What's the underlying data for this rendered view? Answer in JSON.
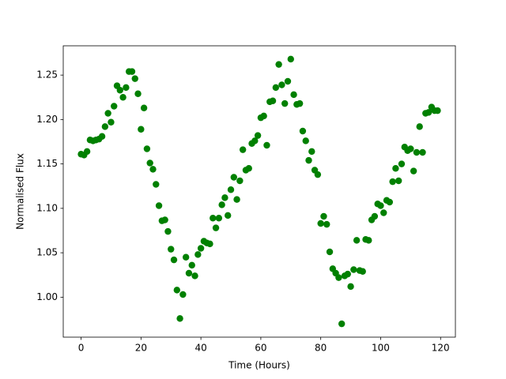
{
  "chart_data": {
    "type": "scatter",
    "xlabel": "Time (Hours)",
    "ylabel": "Normalised Flux",
    "color": "green",
    "grid": false,
    "x": [
      0,
      1,
      2,
      3,
      4,
      5,
      6,
      7,
      8,
      9,
      10,
      11,
      12,
      13,
      14,
      15,
      16,
      17,
      18,
      19,
      20,
      21,
      22,
      23,
      24,
      25,
      26,
      27,
      28,
      29,
      30,
      31,
      32,
      33,
      34,
      35,
      36,
      37,
      38,
      39,
      40,
      41,
      42,
      43,
      44,
      45,
      46,
      47,
      48,
      49,
      50,
      51,
      52,
      53,
      54,
      55,
      56,
      57,
      58,
      59,
      60,
      61,
      62,
      63,
      64,
      65,
      66,
      67,
      68,
      69,
      70,
      71,
      72,
      73,
      74,
      75,
      76,
      77,
      78,
      79,
      80,
      81,
      82,
      83,
      84,
      85,
      86,
      87,
      88,
      89,
      90,
      91,
      92,
      93,
      94,
      95,
      96,
      97,
      98,
      99,
      100,
      101,
      102,
      103,
      104,
      105,
      106,
      107,
      108,
      109,
      110,
      111,
      112,
      113,
      114,
      115,
      116,
      117,
      118,
      119
    ],
    "values": [
      1.161,
      1.16,
      1.164,
      1.177,
      1.176,
      1.177,
      1.178,
      1.181,
      1.192,
      1.207,
      1.197,
      1.215,
      1.238,
      1.233,
      1.225,
      1.236,
      1.254,
      1.254,
      1.246,
      1.229,
      1.189,
      1.213,
      1.167,
      1.151,
      1.144,
      1.127,
      1.103,
      1.086,
      1.087,
      1.074,
      1.054,
      1.042,
      1.008,
      0.976,
      1.003,
      1.045,
      1.027,
      1.036,
      1.024,
      1.048,
      1.055,
      1.063,
      1.061,
      1.06,
      1.089,
      1.078,
      1.089,
      1.104,
      1.112,
      1.092,
      1.121,
      1.135,
      1.11,
      1.131,
      1.166,
      1.143,
      1.145,
      1.173,
      1.176,
      1.182,
      1.202,
      1.204,
      1.171,
      1.22,
      1.221,
      1.236,
      1.262,
      1.239,
      1.218,
      1.243,
      1.268,
      1.228,
      1.217,
      1.218,
      1.187,
      1.176,
      1.154,
      1.164,
      1.143,
      1.138,
      1.083,
      1.091,
      1.082,
      1.051,
      1.032,
      1.027,
      1.022,
      0.97,
      1.024,
      1.026,
      1.012,
      1.031,
      1.064,
      1.03,
      1.029,
      1.065,
      1.064,
      1.087,
      1.091,
      1.105,
      1.103,
      1.095,
      1.109,
      1.107,
      1.13,
      1.145,
      1.131,
      1.15,
      1.169,
      1.165,
      1.167,
      1.142,
      1.163,
      1.192,
      1.163,
      1.207,
      1.208,
      1.214,
      1.21,
      1.21
    ],
    "xlim": [
      -5.95,
      124.95
    ],
    "xticks": [
      0,
      20,
      40,
      60,
      80,
      100,
      120
    ],
    "ylim": [
      0.955,
      1.283
    ],
    "yticks": [
      {
        "value": 1.0,
        "label": "1.00"
      },
      1.05,
      {
        "value": 1.1,
        "label": "1.10"
      },
      1.15,
      {
        "value": 1.2,
        "label": "1.20"
      },
      1.25
    ]
  }
}
